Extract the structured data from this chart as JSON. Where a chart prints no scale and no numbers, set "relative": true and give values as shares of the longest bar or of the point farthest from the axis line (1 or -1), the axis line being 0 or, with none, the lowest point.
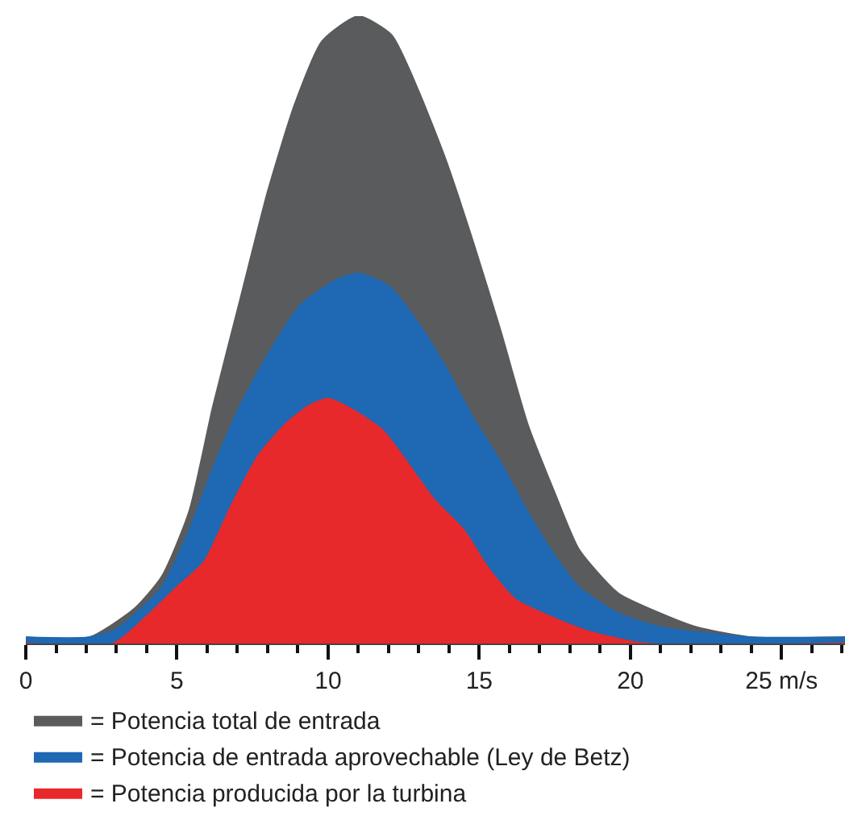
{
  "chart_data": {
    "type": "area",
    "relative": true,
    "xlim": [
      0,
      27.1
    ],
    "xticks": [
      0,
      5,
      10,
      15,
      20,
      {
        "value": 25,
        "label": "25 m/s"
      }
    ],
    "legend": "bottom",
    "grid": false,
    "tick_labels": "x",
    "series": [
      {
        "name": "= Potencia total de entrada",
        "color": "#5a5b5c",
        "x": [
          0,
          2.1,
          3.6,
          4.5,
          5.4,
          6.2,
          7.1,
          8.0,
          8.9,
          9.8,
          11.0,
          12.1,
          13.0,
          13.9,
          14.8,
          15.7,
          16.6,
          17.5,
          18.3,
          19.6,
          21.0,
          22.2,
          24.0,
          27.1
        ],
        "values": [
          0.01,
          0.01,
          0.056,
          0.107,
          0.21,
          0.38,
          0.55,
          0.72,
          0.86,
          0.96,
          1,
          0.97,
          0.88,
          0.77,
          0.64,
          0.5,
          0.35,
          0.24,
          0.15,
          0.08,
          0.048,
          0.026,
          0.01,
          0.01
        ]
      },
      {
        "name": "= Potencia de entrada aprovechable (Ley de Betz)",
        "color": "#1f68b3",
        "x": [
          0,
          2.1,
          3.0,
          4.5,
          5.4,
          6.2,
          7.1,
          8.0,
          9.1,
          10.3,
          11.0,
          12.0,
          13.0,
          13.9,
          14.8,
          15.7,
          16.6,
          17.5,
          18.3,
          19.6,
          21.0,
          22.2,
          24.0,
          27.1
        ],
        "values": [
          0.01,
          0.01,
          0.023,
          0.09,
          0.18,
          0.28,
          0.38,
          0.46,
          0.54,
          0.58,
          0.59,
          0.57,
          0.51,
          0.44,
          0.36,
          0.29,
          0.21,
          0.14,
          0.09,
          0.048,
          0.026,
          0.018,
          0.01,
          0.01
        ]
      },
      {
        "name": "= Potencia producida por la turbina",
        "color": "#e8292b",
        "x": [
          0,
          2.9,
          4.1,
          5.0,
          5.9,
          6.8,
          7.7,
          8.6,
          9.4,
          10.0,
          10.9,
          11.8,
          12.6,
          13.5,
          14.5,
          15.3,
          16.2,
          17.5,
          18.7,
          20.5,
          27.1
        ],
        "values": [
          0,
          0,
          0.048,
          0.09,
          0.13,
          0.22,
          0.3,
          0.35,
          0.38,
          0.39,
          0.37,
          0.34,
          0.29,
          0.23,
          0.18,
          0.12,
          0.07,
          0.04,
          0.018,
          0,
          0
        ]
      }
    ]
  }
}
